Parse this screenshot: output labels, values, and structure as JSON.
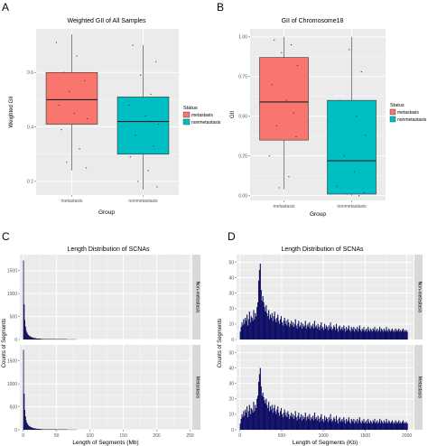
{
  "panels": [
    {
      "letter": "A",
      "title": "Weighted GII of All Samples",
      "xlabel": "Group",
      "ylabel": "Weighted GII",
      "legend_title": "Status"
    },
    {
      "letter": "B",
      "title": "GII of Chromosome18",
      "xlabel": "Group",
      "ylabel": "GII",
      "legend_title": "Status"
    },
    {
      "letter": "C",
      "title": "Length Distribution of SCNAs",
      "xlabel": "Length of Segments (Mb)",
      "ylabel": "Counts of Segments",
      "strips": [
        "Non-metastasis",
        "Metastasis"
      ]
    },
    {
      "letter": "D",
      "title": "Length Distribution of SCNAs",
      "xlabel": "Length of Segments (Kb)",
      "ylabel": "Counts of Segments",
      "strips": [
        "Non-metastasis",
        "Metastasis"
      ]
    }
  ],
  "colors": {
    "metastasis": "#F8766D",
    "nonmetastasis": "#00BFC4",
    "panel_bg": "#EBEBEB",
    "grid": "#FFFFFF",
    "hist_bar": "#0D0D80",
    "strip_bg": "#D9D9D9"
  },
  "chart_data": [
    {
      "type": "box",
      "title": "Weighted GII of All Samples",
      "xlabel": "Group",
      "ylabel": "Weighted GII",
      "categories": [
        "metastasis",
        "nonmetastasis"
      ],
      "yticks": [
        0.2,
        0.4,
        0.6
      ],
      "ylim": [
        0.15,
        0.76
      ],
      "boxes": [
        {
          "name": "metastasis",
          "whisker_low": 0.24,
          "q1": 0.41,
          "median": 0.5,
          "q3": 0.6,
          "whisker_high": 0.74
        },
        {
          "name": "nonmetastasis",
          "whisker_low": 0.17,
          "q1": 0.3,
          "median": 0.42,
          "q3": 0.51,
          "whisker_high": 0.7
        }
      ],
      "legend": {
        "title": "Status",
        "entries": [
          "metastasis",
          "nonmetastasis"
        ],
        "position": "right"
      },
      "points": [
        {
          "group": 0,
          "jitter": -0.3,
          "y": 0.71
        },
        {
          "group": 0,
          "jitter": 0.1,
          "y": 0.66
        },
        {
          "group": 0,
          "jitter": -0.15,
          "y": 0.6
        },
        {
          "group": 0,
          "jitter": 0.25,
          "y": 0.57
        },
        {
          "group": 0,
          "jitter": -0.05,
          "y": 0.53
        },
        {
          "group": 0,
          "jitter": 0.2,
          "y": 0.5
        },
        {
          "group": 0,
          "jitter": -0.25,
          "y": 0.48
        },
        {
          "group": 0,
          "jitter": 0.05,
          "y": 0.45
        },
        {
          "group": 0,
          "jitter": 0.3,
          "y": 0.43
        },
        {
          "group": 0,
          "jitter": -0.2,
          "y": 0.39
        },
        {
          "group": 0,
          "jitter": 0.15,
          "y": 0.32
        },
        {
          "group": 0,
          "jitter": -0.1,
          "y": 0.27
        },
        {
          "group": 0,
          "jitter": 0.28,
          "y": 0.25
        },
        {
          "group": 1,
          "jitter": -0.2,
          "y": 0.7
        },
        {
          "group": 1,
          "jitter": 0.25,
          "y": 0.64
        },
        {
          "group": 1,
          "jitter": -0.05,
          "y": 0.59
        },
        {
          "group": 1,
          "jitter": 0.15,
          "y": 0.52
        },
        {
          "group": 1,
          "jitter": -0.28,
          "y": 0.48
        },
        {
          "group": 1,
          "jitter": 0.05,
          "y": 0.44
        },
        {
          "group": 1,
          "jitter": 0.3,
          "y": 0.41
        },
        {
          "group": 1,
          "jitter": -0.15,
          "y": 0.37
        },
        {
          "group": 1,
          "jitter": 0.2,
          "y": 0.33
        },
        {
          "group": 1,
          "jitter": -0.25,
          "y": 0.29
        },
        {
          "group": 1,
          "jitter": 0.1,
          "y": 0.24
        },
        {
          "group": 1,
          "jitter": -0.1,
          "y": 0.2
        },
        {
          "group": 1,
          "jitter": 0.27,
          "y": 0.18
        }
      ]
    },
    {
      "type": "box",
      "title": "GII of Chromosome18",
      "xlabel": "Group",
      "ylabel": "GII",
      "categories": [
        "metastasis",
        "nonmetastasis"
      ],
      "yticks": [
        0.0,
        0.25,
        0.5,
        0.75,
        1.0
      ],
      "ytick_labels": [
        "0.00",
        "0.25",
        "0.50",
        "0.75",
        "1.00"
      ],
      "ylim": [
        -0.03,
        1.05
      ],
      "boxes": [
        {
          "name": "metastasis",
          "whisker_low": 0.04,
          "q1": 0.35,
          "median": 0.59,
          "q3": 0.87,
          "whisker_high": 1.0
        },
        {
          "name": "nonmetastasis",
          "whisker_low": 0.0,
          "q1": 0.01,
          "median": 0.22,
          "q3": 0.6,
          "whisker_high": 1.0
        }
      ],
      "legend": {
        "title": "Status",
        "entries": [
          "metastasis",
          "nonmetastasis"
        ],
        "position": "right"
      },
      "points": [
        {
          "group": 0,
          "jitter": -0.2,
          "y": 0.98
        },
        {
          "group": 0,
          "jitter": 0.15,
          "y": 0.95
        },
        {
          "group": 0,
          "jitter": -0.05,
          "y": 0.9
        },
        {
          "group": 0,
          "jitter": 0.28,
          "y": 0.82
        },
        {
          "group": 0,
          "jitter": -0.25,
          "y": 0.7
        },
        {
          "group": 0,
          "jitter": 0.05,
          "y": 0.6
        },
        {
          "group": 0,
          "jitter": 0.2,
          "y": 0.52
        },
        {
          "group": 0,
          "jitter": -0.15,
          "y": 0.44
        },
        {
          "group": 0,
          "jitter": 0.25,
          "y": 0.37
        },
        {
          "group": 0,
          "jitter": -0.3,
          "y": 0.25
        },
        {
          "group": 0,
          "jitter": 0.1,
          "y": 0.12
        },
        {
          "group": 0,
          "jitter": -0.1,
          "y": 0.05
        },
        {
          "group": 1,
          "jitter": -0.05,
          "y": 0.92
        },
        {
          "group": 1,
          "jitter": 0.2,
          "y": 0.78
        },
        {
          "group": 1,
          "jitter": -0.25,
          "y": 0.6
        },
        {
          "group": 1,
          "jitter": 0.1,
          "y": 0.5
        },
        {
          "group": 1,
          "jitter": 0.28,
          "y": 0.38
        },
        {
          "group": 1,
          "jitter": -0.15,
          "y": 0.25
        },
        {
          "group": 1,
          "jitter": 0.05,
          "y": 0.15
        },
        {
          "group": 1,
          "jitter": -0.3,
          "y": 0.06
        },
        {
          "group": 1,
          "jitter": 0.25,
          "y": 0.02
        },
        {
          "group": 1,
          "jitter": -0.1,
          "y": 0.01
        },
        {
          "group": 1,
          "jitter": 0.15,
          "y": 0.0
        }
      ]
    },
    {
      "type": "histogram",
      "title": "Length Distribution of SCNAs",
      "xlabel": "Length of Segments (Mb)",
      "ylabel": "Counts of Segments",
      "facets": [
        "Non-metastasis",
        "Metastasis"
      ],
      "xticks": [
        0,
        50,
        100,
        150,
        200,
        250
      ],
      "xlim": [
        -5,
        252
      ],
      "yticks": [
        0,
        500,
        1000,
        1500
      ],
      "ylim": [
        0,
        1850
      ],
      "binwidth": 1,
      "series": [
        {
          "name": "Non-metastasis",
          "values": [
            1720,
            760,
            420,
            280,
            200,
            150,
            120,
            100,
            85,
            72,
            62,
            54,
            47,
            41,
            36,
            32,
            28,
            25,
            22,
            20,
            18,
            16,
            15,
            14,
            13,
            12,
            11,
            10,
            10,
            9,
            8,
            8,
            7,
            7,
            6,
            6,
            6,
            5,
            5,
            5,
            4,
            4,
            4,
            4,
            3,
            3,
            3,
            3,
            3,
            3,
            3,
            2,
            2,
            2,
            2,
            2,
            2,
            2,
            2,
            2,
            2,
            2,
            2,
            2,
            2,
            1,
            1,
            1,
            1,
            1,
            1,
            1,
            1,
            1,
            1,
            1,
            1,
            1,
            1,
            1
          ]
        },
        {
          "name": "Metastasis",
          "values": [
            1740,
            780,
            430,
            290,
            205,
            155,
            122,
            102,
            86,
            73,
            63,
            55,
            48,
            42,
            37,
            33,
            29,
            26,
            23,
            21,
            19,
            17,
            15,
            14,
            13,
            12,
            11,
            10,
            10,
            9,
            8,
            8,
            7,
            7,
            6,
            6,
            6,
            5,
            5,
            5,
            4,
            4,
            4,
            4,
            3,
            3,
            3,
            3,
            3,
            3,
            3,
            2,
            2,
            2,
            2,
            2,
            2,
            2,
            2,
            2,
            2,
            2,
            2,
            2,
            2,
            1,
            1,
            1,
            1,
            1,
            1,
            1,
            1,
            1,
            1,
            1,
            1,
            1,
            1,
            1
          ]
        }
      ]
    },
    {
      "type": "histogram",
      "title": "Length Distribution of SCNAs",
      "xlabel": "Length of Segments (Kb)",
      "ylabel": "Counts of Segments",
      "facets": [
        "Non-metastasis",
        "Metastasis"
      ],
      "xticks": [
        0,
        500,
        1000,
        1500,
        2000
      ],
      "xlim": [
        -40,
        2080
      ],
      "yticks": [
        0,
        10,
        20,
        30,
        40,
        50
      ],
      "ylim": [
        0,
        55
      ],
      "binwidth": 10,
      "series": [
        {
          "name": "Non-metastasis",
          "values": [
            5,
            8,
            11,
            9,
            13,
            10,
            14,
            12,
            16,
            9,
            13,
            18,
            11,
            15,
            14,
            12,
            19,
            13,
            17,
            15,
            21,
            24,
            38,
            45,
            49,
            32,
            25,
            28,
            24,
            21,
            18,
            22,
            17,
            15,
            19,
            13,
            16,
            14,
            17,
            12,
            15,
            18,
            13,
            11,
            14,
            16,
            12,
            10,
            13,
            15,
            11,
            9,
            12,
            14,
            10,
            12,
            9,
            13,
            11,
            8,
            10,
            12,
            9,
            11,
            8,
            10,
            13,
            9,
            7,
            10,
            12,
            8,
            9,
            11,
            7,
            10,
            8,
            9,
            12,
            7,
            9,
            10,
            8,
            11,
            7,
            9,
            8,
            10,
            7,
            12,
            8,
            9,
            7,
            10,
            8,
            6,
            9,
            11,
            7,
            8,
            6,
            10,
            7,
            9,
            8,
            6,
            9,
            7,
            11,
            8,
            6,
            7,
            9,
            8,
            6,
            10,
            7,
            5,
            8,
            9,
            6,
            7,
            8,
            6,
            9,
            7,
            5,
            8,
            6,
            7,
            9,
            6,
            5,
            8,
            7,
            6,
            8,
            5,
            7,
            6,
            8,
            5,
            7,
            9,
            6,
            5,
            7,
            6,
            8,
            5,
            6,
            7,
            5,
            8,
            6,
            5,
            7,
            6,
            5,
            7,
            6,
            8,
            5,
            6,
            7,
            5,
            6,
            8,
            5,
            7,
            6,
            5,
            7,
            6,
            5,
            8,
            6,
            5,
            7,
            6,
            5,
            6,
            7,
            5,
            6,
            5,
            7,
            6,
            5,
            6,
            7,
            5,
            6,
            5,
            6,
            7,
            5,
            6,
            5,
            6,
            5
          ]
        },
        {
          "name": "Metastasis",
          "values": [
            4,
            7,
            10,
            8,
            12,
            9,
            13,
            11,
            15,
            8,
            12,
            16,
            10,
            14,
            13,
            11,
            18,
            12,
            16,
            14,
            20,
            22,
            31,
            36,
            40,
            28,
            22,
            24,
            21,
            19,
            17,
            20,
            16,
            14,
            18,
            12,
            15,
            13,
            16,
            11,
            14,
            16,
            12,
            10,
            13,
            15,
            11,
            9,
            12,
            14,
            10,
            8,
            11,
            13,
            9,
            11,
            8,
            12,
            10,
            7,
            9,
            11,
            8,
            10,
            7,
            9,
            12,
            8,
            6,
            9,
            11,
            7,
            8,
            10,
            6,
            9,
            7,
            8,
            11,
            6,
            8,
            9,
            7,
            10,
            6,
            8,
            7,
            9,
            6,
            11,
            7,
            8,
            6,
            9,
            7,
            5,
            8,
            10,
            6,
            7,
            5,
            9,
            6,
            8,
            7,
            5,
            8,
            6,
            10,
            7,
            5,
            6,
            8,
            7,
            5,
            9,
            6,
            4,
            7,
            8,
            5,
            6,
            7,
            5,
            8,
            6,
            4,
            7,
            5,
            6,
            8,
            5,
            4,
            7,
            6,
            5,
            7,
            4,
            6,
            5,
            7,
            4,
            6,
            8,
            5,
            4,
            6,
            5,
            7,
            4,
            5,
            6,
            4,
            7,
            5,
            4,
            6,
            5,
            4,
            6,
            5,
            7,
            4,
            5,
            6,
            4,
            5,
            7,
            4,
            6,
            5,
            4,
            6,
            5,
            4,
            7,
            5,
            4,
            6,
            5,
            4,
            5,
            6,
            4,
            5,
            4,
            6,
            5,
            4,
            5,
            6,
            4,
            5,
            4,
            5,
            6,
            4,
            5,
            4,
            5,
            4
          ]
        }
      ]
    }
  ]
}
